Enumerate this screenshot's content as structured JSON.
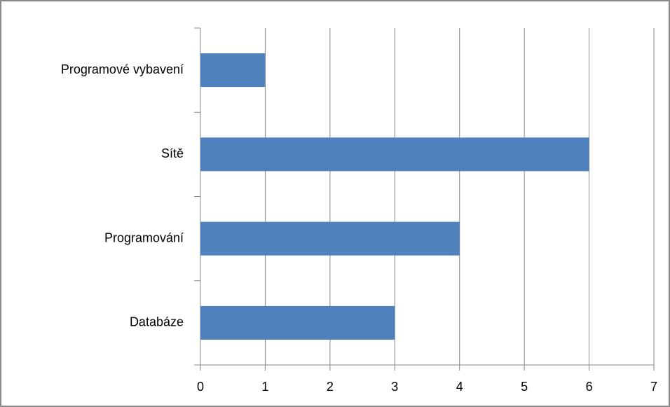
{
  "chart_data": {
    "type": "bar",
    "orientation": "horizontal",
    "categories": [
      "Programové vybavení",
      "Sítě",
      "Programování",
      "Databáze"
    ],
    "values": [
      1,
      6,
      4,
      3
    ],
    "color": "#4f81bd",
    "xlim": [
      0,
      7
    ],
    "xticks": [
      0,
      1,
      2,
      3,
      4,
      5,
      6,
      7
    ],
    "grid": true
  }
}
